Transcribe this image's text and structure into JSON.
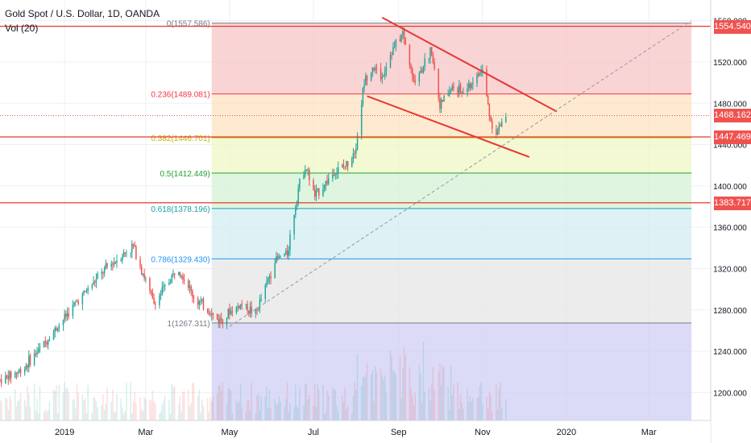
{
  "header": {
    "title": "Gold Spot / U.S. Dollar, 1D, OANDA",
    "volume_label": "Vol (20)"
  },
  "colors": {
    "up": "#26a69a",
    "down": "#ef5350",
    "trend": "#e53935",
    "hline": "#e53935",
    "grid": "#eef0f3",
    "axis_text": "#131722"
  },
  "price_labels": [
    {
      "value": 1554.54,
      "text": "1554.540",
      "bg": "#ef5350"
    },
    {
      "value": 1468.162,
      "text": "1468.162",
      "bg": "#ef5350"
    },
    {
      "value": 1447.469,
      "text": "1447.469",
      "bg": "#ef5350"
    },
    {
      "value": 1383.717,
      "text": "1383.717",
      "bg": "#ef5350"
    }
  ],
  "chart_data": {
    "type": "candlestick",
    "instrument": "Gold Spot / U.S. Dollar",
    "interval": "1D",
    "source": "OANDA",
    "y_axis": {
      "range": [
        1173,
        1580
      ],
      "ticks": [
        1200,
        1240,
        1280,
        1320,
        1360,
        1400,
        1440,
        1480,
        1520,
        1560
      ],
      "labels": [
        "1200.000",
        "1240.000",
        "1280.000",
        "1320.000",
        "1360.000",
        "1400.000",
        "1440.000",
        "1480.000",
        "1520.000",
        "1560.000"
      ]
    },
    "x_axis": {
      "range": [
        "2018-11-15",
        "2020-04-15"
      ],
      "ticks": [
        {
          "date": "2019-01-01",
          "label": "2019"
        },
        {
          "date": "2019-03-01",
          "label": "Mar"
        },
        {
          "date": "2019-05-01",
          "label": "May"
        },
        {
          "date": "2019-07-01",
          "label": "Jul"
        },
        {
          "date": "2019-09-01",
          "label": "Sep"
        },
        {
          "date": "2019-11-01",
          "label": "Nov"
        },
        {
          "date": "2020-01-01",
          "label": "2020"
        },
        {
          "date": "2020-03-01",
          "label": "Mar"
        }
      ]
    },
    "horizontal_lines": [
      1554.54,
      1447.469,
      1383.717
    ],
    "current_price": 1468.162,
    "fibonacci": {
      "start_date": "2019-04-18",
      "end_date": "2020-04-01",
      "levels": [
        {
          "ratio": 0,
          "price": 1557.586,
          "label": "0(1557.586)",
          "color": "#787b86",
          "fill": "#f7c5c7"
        },
        {
          "ratio": 0.236,
          "price": 1489.081,
          "label": "0.236(1489.081)",
          "color": "#f23645",
          "fill": "#fde3c0"
        },
        {
          "ratio": 0.382,
          "price": 1446.701,
          "label": "0.382(1446.701)",
          "color": "#c9b200",
          "fill": "#eef7c4"
        },
        {
          "ratio": 0.5,
          "price": 1412.449,
          "label": "0.5(1412.449)",
          "color": "#26a131",
          "fill": "#d4f2d4"
        },
        {
          "ratio": 0.618,
          "price": 1378.196,
          "label": "0.618(1378.196)",
          "color": "#17a2a2",
          "fill": "#d3ecf2"
        },
        {
          "ratio": 0.786,
          "price": 1329.43,
          "label": "0.786(1329.430)",
          "color": "#2196f3",
          "fill": "#e6e6e6"
        },
        {
          "ratio": 1,
          "price": 1267.311,
          "label": "1(1267.311)",
          "color": "#787b86",
          "fill": "#cfcff5"
        }
      ]
    },
    "trendlines": [
      {
        "from": [
          "2019-08-20",
          1563
        ],
        "to": [
          "2019-12-25",
          1472
        ],
        "style": "solid",
        "color": "#e53935"
      },
      {
        "from": [
          "2019-08-09",
          1487
        ],
        "to": [
          "2019-12-05",
          1428
        ],
        "style": "dashed-none",
        "color": "#e53935"
      },
      {
        "from": [
          "2019-05-01",
          1264
        ],
        "to": [
          "2020-04-01",
          1560
        ],
        "style": "dashed",
        "color": "#9598a1"
      }
    ],
    "ohlc_anchors": [
      [
        "2018-11-15",
        1212
      ],
      [
        "2018-12-01",
        1222
      ],
      [
        "2018-12-20",
        1252
      ],
      [
        "2019-01-10",
        1288
      ],
      [
        "2019-01-31",
        1320
      ],
      [
        "2019-02-20",
        1342
      ],
      [
        "2019-03-07",
        1286
      ],
      [
        "2019-03-25",
        1322
      ],
      [
        "2019-04-05",
        1292
      ],
      [
        "2019-04-23",
        1270
      ],
      [
        "2019-05-10",
        1286
      ],
      [
        "2019-05-20",
        1276
      ],
      [
        "2019-06-03",
        1328
      ],
      [
        "2019-06-12",
        1335
      ],
      [
        "2019-06-20",
        1398
      ],
      [
        "2019-06-25",
        1420
      ],
      [
        "2019-07-02",
        1390
      ],
      [
        "2019-07-15",
        1412
      ],
      [
        "2019-07-25",
        1420
      ],
      [
        "2019-08-01",
        1440
      ],
      [
        "2019-08-07",
        1502
      ],
      [
        "2019-08-13",
        1515
      ],
      [
        "2019-08-20",
        1505
      ],
      [
        "2019-08-26",
        1528
      ],
      [
        "2019-09-04",
        1548
      ],
      [
        "2019-09-12",
        1500
      ],
      [
        "2019-09-25",
        1532
      ],
      [
        "2019-10-01",
        1478
      ],
      [
        "2019-10-10",
        1495
      ],
      [
        "2019-10-18",
        1490
      ],
      [
        "2019-11-01",
        1512
      ],
      [
        "2019-11-07",
        1462
      ],
      [
        "2019-11-12",
        1452
      ],
      [
        "2019-11-18",
        1470
      ]
    ],
    "last_date": "2019-11-18"
  }
}
